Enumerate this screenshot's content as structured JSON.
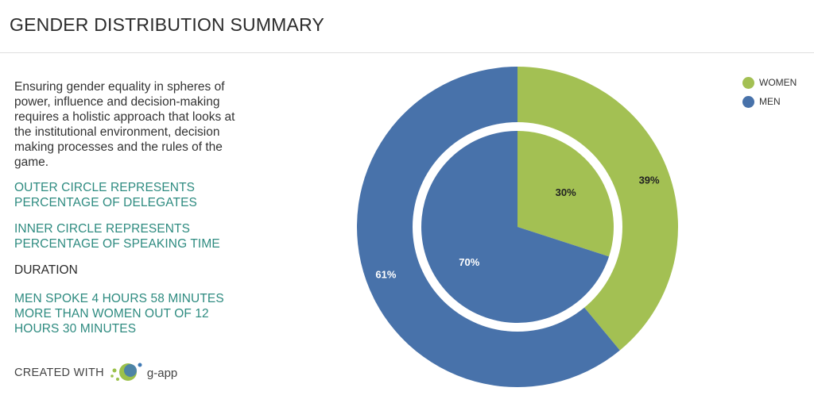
{
  "header": {
    "title": "GENDER DISTRIBUTION SUMMARY"
  },
  "sidebar": {
    "intro": "Ensuring gender equality in spheres of power, influence and decision-making requires a holistic approach that looks at the institutional environment, decision making processes and the rules of the game.",
    "outer_note": "OUTER CIRCLE REPRESENTS PERCENTAGE OF DELEGATES",
    "inner_note": "INNER CIRCLE REPRESENTS PERCENTAGE OF SPEAKING TIME",
    "duration_label": "DURATION",
    "duration_text": "MEN SPOKE 4 HOURS 58 MINUTES MORE THAN WOMEN OUT OF 12 HOURS 30 MINUTES",
    "credit_text": "CREATED WITH",
    "credit_brand": "g-app"
  },
  "chart_data": {
    "type": "pie",
    "title": "",
    "legend_position": "top-right",
    "categories": [
      "WOMEN",
      "MEN"
    ],
    "colors": {
      "WOMEN": "#a3c053",
      "MEN": "#4872aa"
    },
    "series": [
      {
        "values": [
          39,
          61
        ],
        "labels": [
          "39%",
          "61%"
        ]
      },
      {
        "values": [
          30,
          70
        ],
        "labels": [
          "30%",
          "70%"
        ]
      }
    ]
  }
}
